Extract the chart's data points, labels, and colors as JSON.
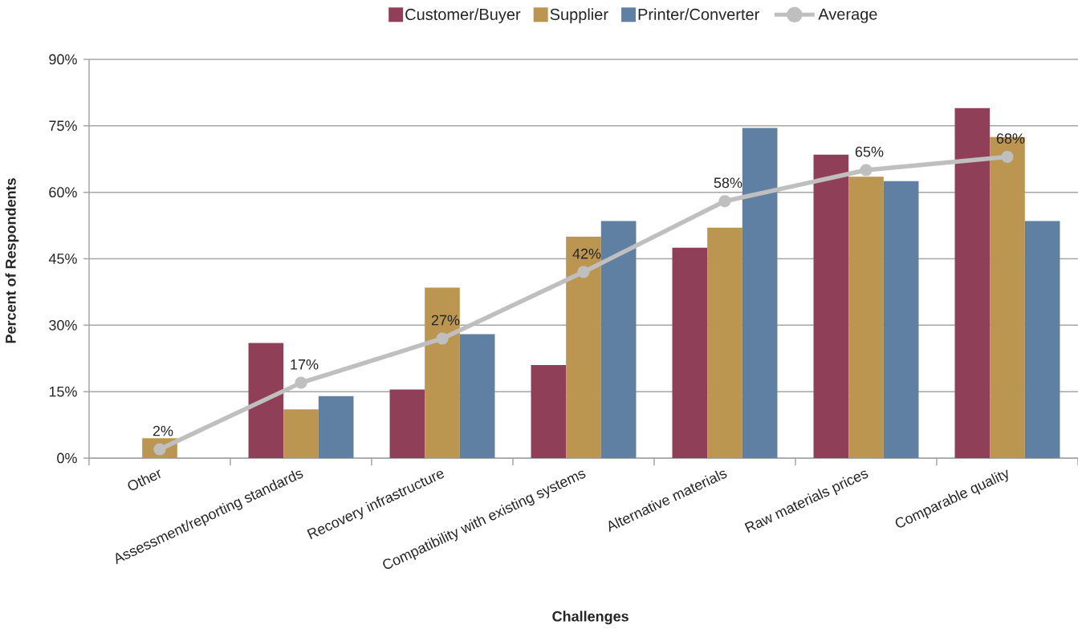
{
  "chart_data": {
    "type": "bar",
    "xlabel": "Challenges",
    "ylabel": "Percent of Respondents",
    "categories": [
      "Other",
      "Assessment/reporting standards",
      "Recovery infrastructure",
      "Compatibility with existing systems",
      "Alternative materials",
      "Raw materials prices",
      "Comparable quality"
    ],
    "series": [
      {
        "name": "Customer/Buyer",
        "color": "#8f4058",
        "values": [
          0,
          26,
          15.5,
          21,
          47.5,
          68.5,
          79
        ]
      },
      {
        "name": "Supplier",
        "color": "#bb9650",
        "values": [
          4.5,
          11,
          38.5,
          50,
          52,
          63.5,
          72.5
        ]
      },
      {
        "name": "Printer/Converter",
        "color": "#5f7fa3",
        "values": [
          0,
          14,
          28,
          53.5,
          74.5,
          62.5,
          53.5
        ]
      },
      {
        "name": "Average",
        "type": "line",
        "color": "#bfbfbf",
        "values": [
          2,
          17,
          27,
          42,
          58,
          65,
          68
        ],
        "value_labels": [
          "2%",
          "17%",
          "27%",
          "42%",
          "58%",
          "65%",
          "68%"
        ]
      }
    ],
    "ylim": [
      0,
      90
    ],
    "yticks": [
      {
        "value": 0,
        "label": "0%"
      },
      {
        "value": 15,
        "label": "15%"
      },
      {
        "value": 30,
        "label": "30%"
      },
      {
        "value": 45,
        "label": "45%"
      },
      {
        "value": 60,
        "label": "60%"
      },
      {
        "value": 75,
        "label": "75%"
      },
      {
        "value": 90,
        "label": "90%"
      }
    ],
    "grid": "y",
    "legend": "top",
    "marker": "circle"
  }
}
